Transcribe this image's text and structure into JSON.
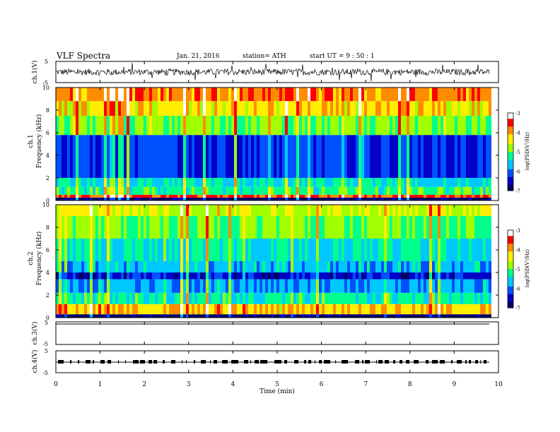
{
  "header": {
    "title": "VLF  Spectra",
    "date": "Jan. 21, 2016",
    "station": "station= ATH",
    "start": "start  UT  =   9  : 50 : 1"
  },
  "colors": {
    "spectrum": [
      "#000066",
      "#0000c8",
      "#0050ff",
      "#00c8ff",
      "#00ff8c",
      "#a0ff00",
      "#ffee00",
      "#ff8c00",
      "#ff0000",
      "#ffffff"
    ],
    "trace": "#000000",
    "frame": "#000000"
  },
  "chart_data": [
    {
      "type": "line",
      "name": "ch1-waveform",
      "ylabel": "ch.1(V)",
      "ylim": [
        -5,
        5
      ],
      "yticks": [
        "5",
        "-5"
      ],
      "xlim": [
        0,
        10
      ],
      "baseline": 0,
      "amplitude": 1.5
    },
    {
      "type": "heatmap",
      "name": "ch1-spectrogram",
      "ylabel_channel": "ch.1",
      "ylabel": "Frequency  (kHz)",
      "ylim": [
        0,
        10
      ],
      "yticks": [
        "0",
        "2",
        "4",
        "6",
        "8",
        "10"
      ],
      "xlim": [
        0,
        10
      ],
      "data_end_min": 9.8,
      "colorbar": {
        "label": "log(PSD(V²/Hz)",
        "range": [
          -7,
          -3
        ],
        "ticks": [
          "-3",
          "-4",
          "-5",
          "-6",
          "-7"
        ]
      },
      "bands": [
        {
          "f0": 0,
          "f1": 0.25,
          "level": 0.0
        },
        {
          "f0": 0.25,
          "f1": 0.5,
          "level": 0.85
        },
        {
          "f0": 0.5,
          "f1": 1.2,
          "level": 0.45
        },
        {
          "f0": 1.2,
          "f1": 2.0,
          "level": 0.38
        },
        {
          "f0": 2.0,
          "f1": 5.8,
          "level": 0.18
        },
        {
          "f0": 5.8,
          "f1": 7.5,
          "level": 0.52
        },
        {
          "f0": 7.5,
          "f1": 8.8,
          "level": 0.66
        },
        {
          "f0": 8.8,
          "f1": 10,
          "level": 0.78
        }
      ]
    },
    {
      "type": "heatmap",
      "name": "ch2-spectrogram",
      "ylabel_channel": "ch.2",
      "ylabel": "Frequency  (kHz)",
      "ylim": [
        0,
        10
      ],
      "yticks": [
        "0",
        "2",
        "4",
        "6",
        "8",
        "10"
      ],
      "xlim": [
        0,
        10
      ],
      "data_end_min": 9.8,
      "colorbar": {
        "label": "log(PSD(V²/Hz)",
        "range": [
          -7,
          -3
        ],
        "ticks": [
          "-3",
          "-4",
          "-5",
          "-6",
          "-7"
        ]
      },
      "bands": [
        {
          "f0": 0,
          "f1": 0.3,
          "level": 0.0
        },
        {
          "f0": 0.3,
          "f1": 1.2,
          "level": 0.7
        },
        {
          "f0": 1.2,
          "f1": 2.2,
          "level": 0.42
        },
        {
          "f0": 2.2,
          "f1": 3.4,
          "level": 0.3
        },
        {
          "f0": 3.4,
          "f1": 4.0,
          "level": 0.12
        },
        {
          "f0": 4.0,
          "f1": 5.0,
          "level": 0.32
        },
        {
          "f0": 5.0,
          "f1": 7.0,
          "level": 0.4
        },
        {
          "f0": 7.0,
          "f1": 9.0,
          "level": 0.5
        },
        {
          "f0": 9.0,
          "f1": 10,
          "level": 0.6
        }
      ]
    },
    {
      "type": "line",
      "name": "ch3-flat",
      "ylabel": "ch.3(V)",
      "ylim": [
        -5,
        5
      ],
      "yticks": [
        "5",
        "-5"
      ],
      "xlim": [
        0,
        10
      ],
      "value": 0
    },
    {
      "type": "line",
      "name": "ch4-gps-pulses",
      "ylabel": "ch.4(V)",
      "ylim": [
        -5,
        5
      ],
      "yticks": [
        "5",
        "-5"
      ],
      "xlim": [
        0,
        10
      ],
      "value": 0
    }
  ],
  "xaxis": {
    "label": "Time  (min)",
    "ticks": [
      "0",
      "1",
      "2",
      "3",
      "4",
      "5",
      "6",
      "7",
      "8",
      "9",
      "10"
    ]
  }
}
